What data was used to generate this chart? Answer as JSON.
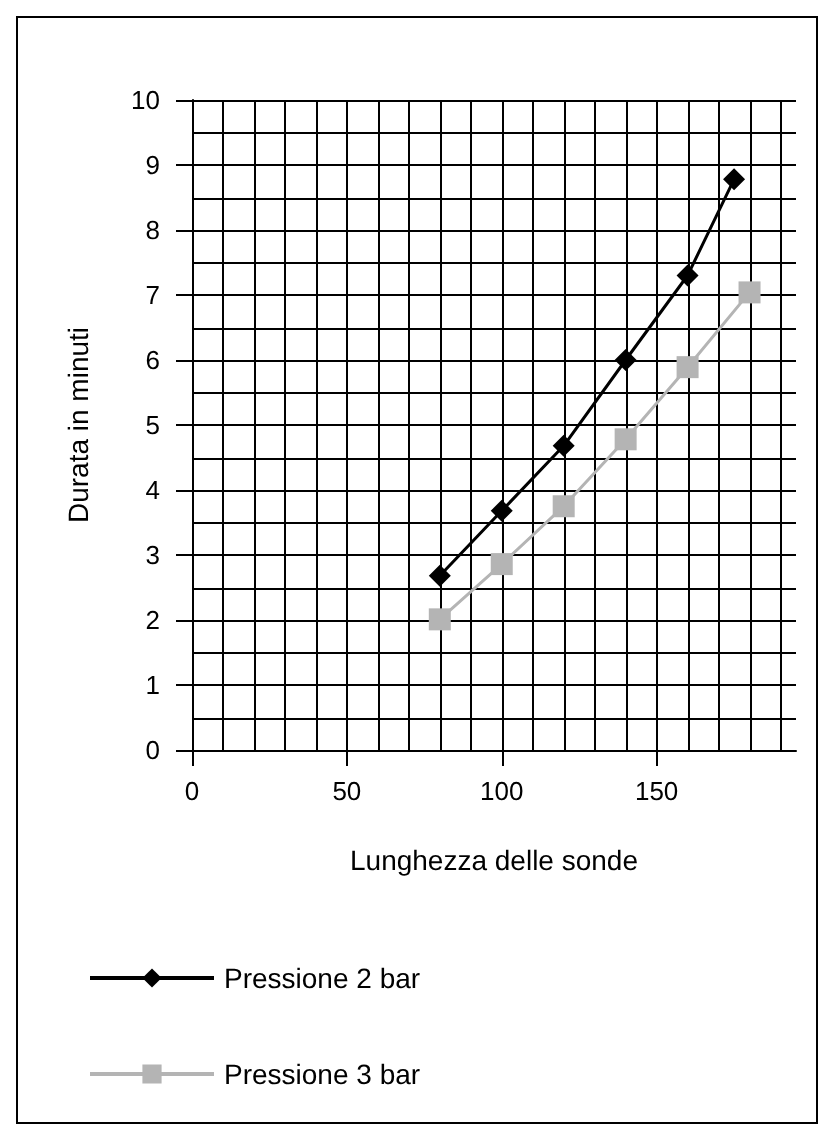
{
  "chart_data": {
    "type": "line",
    "xlabel": "Lunghezza delle sonde",
    "ylabel": "Durata in minuti",
    "xlim": [
      0,
      195
    ],
    "xticks": [
      0,
      50,
      100,
      150
    ],
    "ylim": [
      0,
      10
    ],
    "yticks": [
      0,
      1,
      2,
      3,
      4,
      5,
      6,
      7,
      8,
      9,
      10
    ],
    "grid": true,
    "legend": "bottom",
    "series": [
      {
        "name": "Pressione 2 bar",
        "color": "#000000",
        "marker": "diamond",
        "x": [
          80,
          100,
          120,
          140,
          160,
          175
        ],
        "values": [
          2.68,
          3.68,
          4.68,
          6.0,
          7.3,
          8.78
        ]
      },
      {
        "name": "Pressione 3 bar",
        "color": "#b4b4b4",
        "marker": "square",
        "x": [
          80,
          100,
          120,
          140,
          160,
          180
        ],
        "values": [
          2.01,
          2.86,
          3.75,
          4.78,
          5.89,
          7.04
        ]
      }
    ]
  }
}
